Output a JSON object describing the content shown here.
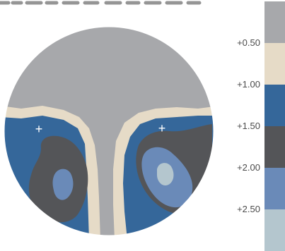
{
  "chart_data": {
    "type": "heatmap",
    "title": "",
    "legend_position": "right",
    "levels": [
      {
        "threshold": "",
        "color": "#a7a8ab"
      },
      {
        "threshold": "+0.50",
        "color": "#e6dbc7"
      },
      {
        "threshold": "+1.00",
        "color": "#35679a"
      },
      {
        "threshold": "+1.50",
        "color": "#545558"
      },
      {
        "threshold": "+2.00",
        "color": "#6a8ab8"
      },
      {
        "threshold": "+2.50",
        "color": "#b4c6ce"
      }
    ],
    "markers": [
      {
        "symbol": "+"
      },
      {
        "symbol": "+"
      }
    ]
  }
}
